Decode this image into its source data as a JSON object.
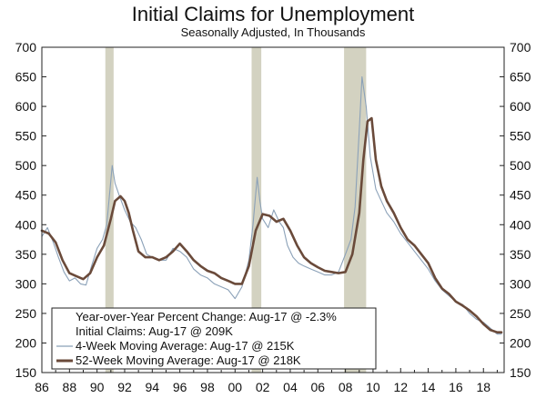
{
  "chart_data": {
    "type": "line",
    "title": "Initial Claims for Unemployment",
    "subtitle": "Seasonally Adjusted, In Thousands",
    "ylim": [
      150,
      700
    ],
    "y_ticks": [
      150,
      200,
      250,
      300,
      350,
      400,
      450,
      500,
      550,
      600,
      650,
      700
    ],
    "xlim": [
      1986.0,
      2019.5
    ],
    "x_ticks": [
      1986,
      1988,
      1990,
      1992,
      1994,
      1996,
      1998,
      2000,
      2002,
      2004,
      2006,
      2008,
      2010,
      2012,
      2014,
      2016,
      2018
    ],
    "x_tick_labels": [
      "86",
      "88",
      "90",
      "92",
      "94",
      "96",
      "98",
      "00",
      "02",
      "04",
      "06",
      "08",
      "10",
      "12",
      "14",
      "16",
      "18"
    ],
    "recessions": [
      [
        1990.6,
        1991.2
      ],
      [
        2001.2,
        2001.9
      ],
      [
        2007.9,
        2009.5
      ]
    ],
    "legend": {
      "header": "Year-over-Year Percent Change: Aug-17 @ -2.3%",
      "items": [
        {
          "label": "Initial Claims: Aug-17 @ 209K"
        },
        {
          "label": "4-Week Moving Average: Aug-17 @ 215K"
        },
        {
          "label": "52-Week Moving Average: Aug-17 @ 218K"
        }
      ]
    },
    "colors": {
      "recession": "#d3d2c1",
      "claims": "#8ba1b8",
      "ma4": "#8ba1b8",
      "ma52": "#6a4a3a",
      "axis": "#222222"
    },
    "series": [
      {
        "name": "4-Week Moving Average",
        "x": [
          1986.0,
          1986.4,
          1986.8,
          1987.2,
          1987.6,
          1988.0,
          1988.4,
          1988.8,
          1989.2,
          1989.6,
          1990.0,
          1990.4,
          1990.7,
          1990.9,
          1991.1,
          1991.3,
          1991.6,
          1992.0,
          1992.4,
          1992.8,
          1993.2,
          1993.6,
          1994.0,
          1994.5,
          1995.0,
          1995.5,
          1996.0,
          1996.5,
          1997.0,
          1997.5,
          1998.0,
          1998.5,
          1999.0,
          1999.5,
          2000.0,
          2000.5,
          2001.0,
          2001.3,
          2001.6,
          2001.8,
          2002.0,
          2002.4,
          2002.8,
          2003.2,
          2003.5,
          2003.8,
          2004.2,
          2004.6,
          2005.0,
          2005.5,
          2006.0,
          2006.5,
          2007.0,
          2007.5,
          2008.0,
          2008.4,
          2008.7,
          2009.0,
          2009.2,
          2009.5,
          2009.8,
          2010.2,
          2010.6,
          2011.0,
          2011.5,
          2012.0,
          2012.5,
          2013.0,
          2013.5,
          2014.0,
          2014.5,
          2015.0,
          2015.5,
          2016.0,
          2016.5,
          2017.0,
          2017.5,
          2018.0,
          2018.5,
          2019.0,
          2019.3
        ],
        "values": [
          380,
          395,
          372,
          345,
          320,
          305,
          310,
          300,
          298,
          330,
          360,
          375,
          400,
          450,
          500,
          470,
          450,
          425,
          405,
          395,
          375,
          350,
          345,
          340,
          340,
          360,
          355,
          345,
          325,
          315,
          310,
          300,
          295,
          290,
          275,
          295,
          340,
          400,
          480,
          440,
          410,
          395,
          425,
          405,
          395,
          365,
          345,
          335,
          330,
          325,
          320,
          315,
          315,
          320,
          350,
          375,
          430,
          560,
          650,
          600,
          515,
          460,
          440,
          420,
          405,
          385,
          370,
          355,
          340,
          325,
          305,
          290,
          280,
          270,
          265,
          250,
          240,
          235,
          225,
          215,
          215
        ]
      },
      {
        "name": "52-Week Moving Average",
        "x": [
          1986.0,
          1986.5,
          1987.0,
          1987.5,
          1988.0,
          1988.5,
          1989.0,
          1989.5,
          1990.0,
          1990.5,
          1991.0,
          1991.3,
          1991.7,
          1992.0,
          1992.3,
          1992.6,
          1993.0,
          1993.5,
          1994.0,
          1994.5,
          1995.0,
          1995.5,
          1996.0,
          1996.5,
          1997.0,
          1997.5,
          1998.0,
          1998.5,
          1999.0,
          1999.5,
          2000.0,
          2000.5,
          2001.0,
          2001.5,
          2002.0,
          2002.5,
          2003.0,
          2003.5,
          2004.0,
          2004.5,
          2005.0,
          2005.5,
          2006.0,
          2006.5,
          2007.0,
          2007.5,
          2008.0,
          2008.5,
          2009.0,
          2009.3,
          2009.6,
          2009.9,
          2010.2,
          2010.6,
          2011.0,
          2011.5,
          2012.0,
          2012.5,
          2013.0,
          2013.5,
          2014.0,
          2014.5,
          2015.0,
          2015.5,
          2016.0,
          2016.5,
          2017.0,
          2017.5,
          2018.0,
          2018.5,
          2019.0,
          2019.3
        ],
        "values": [
          390,
          385,
          370,
          340,
          318,
          313,
          308,
          318,
          345,
          365,
          410,
          440,
          448,
          440,
          420,
          390,
          355,
          345,
          345,
          340,
          345,
          355,
          368,
          355,
          340,
          330,
          322,
          318,
          310,
          305,
          300,
          300,
          330,
          390,
          418,
          415,
          405,
          410,
          390,
          365,
          345,
          335,
          328,
          322,
          320,
          318,
          320,
          350,
          420,
          510,
          575,
          580,
          510,
          465,
          440,
          420,
          395,
          375,
          365,
          350,
          335,
          310,
          292,
          283,
          270,
          263,
          255,
          245,
          232,
          222,
          218,
          218
        ]
      }
    ]
  }
}
